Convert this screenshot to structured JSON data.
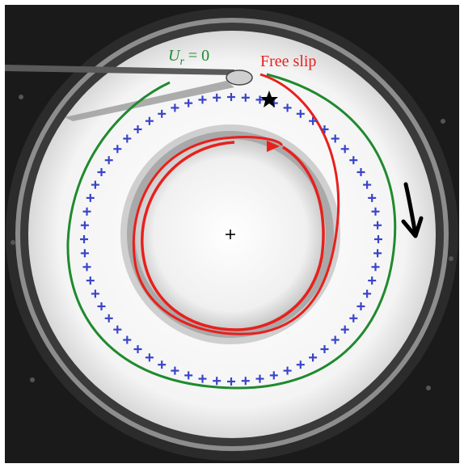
{
  "annotations": {
    "ur_zero": {
      "symbol": "U",
      "subscript": "r",
      "rest": " = 0",
      "color": "#1f8a2e"
    },
    "free_slip": {
      "text": "Free slip",
      "color": "#e8201c"
    }
  },
  "colors": {
    "green_trajectory": "#1f8a2e",
    "red_trajectory": "#e8201c",
    "marker_crosses": "#3a44c8",
    "direction_arrow": "#000000",
    "center_marker": "#000000",
    "start_marker": "#000000"
  },
  "symbols": {
    "marker_cross": "+",
    "center": "+",
    "start": "star",
    "direction": "arrow-down"
  }
}
